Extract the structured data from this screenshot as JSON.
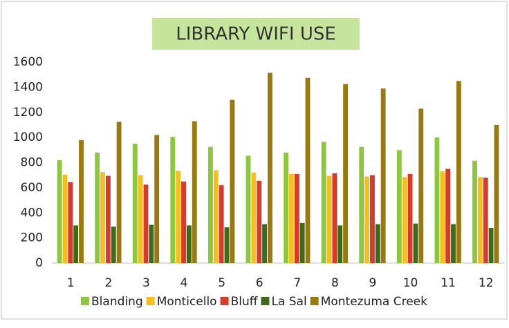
{
  "chart_data": {
    "type": "bar",
    "title": "LIBRARY WIFI USE",
    "categories": [
      "1",
      "2",
      "3",
      "4",
      "5",
      "6",
      "7",
      "8",
      "9",
      "10",
      "11",
      "12"
    ],
    "series": [
      {
        "name": "Blanding",
        "color": "#8dc63f",
        "values": [
          820,
          880,
          950,
          1005,
          925,
          855,
          880,
          965,
          925,
          900,
          1000,
          815
        ]
      },
      {
        "name": "Monticello",
        "color": "#f5c01d",
        "values": [
          705,
          725,
          700,
          735,
          740,
          720,
          710,
          695,
          690,
          685,
          730,
          685
        ]
      },
      {
        "name": "Bluff",
        "color": "#d93a2a",
        "values": [
          645,
          695,
          625,
          650,
          620,
          655,
          710,
          715,
          700,
          710,
          750,
          680
        ]
      },
      {
        "name": "La Sal",
        "color": "#3e6b1a",
        "values": [
          300,
          290,
          305,
          300,
          285,
          310,
          320,
          300,
          310,
          315,
          310,
          280
        ]
      },
      {
        "name": "Montezuma Creek",
        "color": "#9a7a10",
        "values": [
          980,
          1125,
          1020,
          1130,
          1300,
          1515,
          1475,
          1425,
          1390,
          1230,
          1450,
          1100
        ]
      }
    ],
    "ylim": [
      0,
      1600
    ],
    "yticks": [
      0,
      200,
      400,
      600,
      800,
      1000,
      1200,
      1400,
      1600
    ],
    "grid": false,
    "legend": "bottom"
  }
}
